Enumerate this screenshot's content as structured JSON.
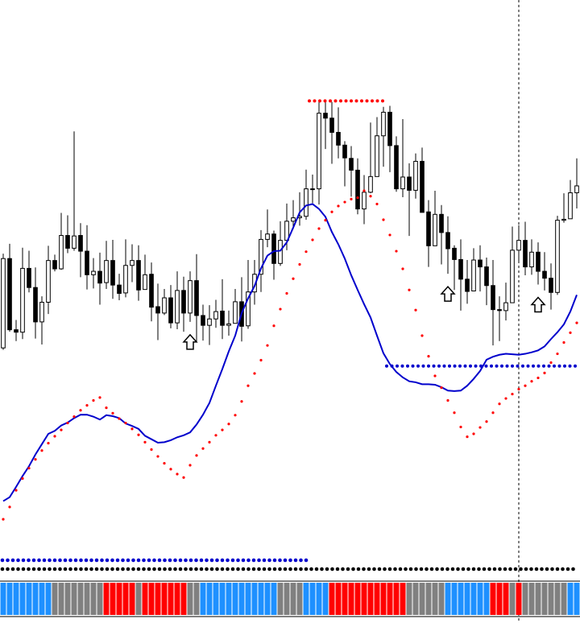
{
  "colors": {
    "background": "#ffffff",
    "bull_body": "#ffffff",
    "bear_body": "#000000",
    "wick": "#000000",
    "moving_average": "#0000cc",
    "sar_dots": "#ff0000",
    "resistance_dots": "#ff0000",
    "support_dots": "#0000cc",
    "strength_up": "#1e90ff",
    "strength_neutral": "#808080",
    "strength_down": "#ff0000",
    "crosshair": "#000000"
  },
  "chart_data": {
    "type": "candlestick",
    "title": "",
    "xlabel": "",
    "ylabel": "",
    "grid": false,
    "ylim": [
      0,
      100
    ],
    "n_bars": 90,
    "candles": [
      [
        35.7,
        53.9,
        54.9,
        35.3
      ],
      [
        53.9,
        39.4,
        56.9,
        39.0
      ],
      [
        39.4,
        38.9,
        41.4,
        37.1
      ],
      [
        38.9,
        51.9,
        56.1,
        37.5
      ],
      [
        51.9,
        48.0,
        55.5,
        47.0
      ],
      [
        48.0,
        41.0,
        52.1,
        37.6
      ],
      [
        41.0,
        45.0,
        46.2,
        36.4
      ],
      [
        45.0,
        53.5,
        56.5,
        42.6
      ],
      [
        53.5,
        51.8,
        54.7,
        51.3
      ],
      [
        51.8,
        58.6,
        63.2,
        51.6
      ],
      [
        58.6,
        56.0,
        62.7,
        55.0
      ],
      [
        56.0,
        58.5,
        79.8,
        55.5
      ],
      [
        58.6,
        55.4,
        61.1,
        50.1
      ],
      [
        55.4,
        50.6,
        60.7,
        47.6
      ],
      [
        50.6,
        51.3,
        54.0,
        47.8
      ],
      [
        51.3,
        48.9,
        55.1,
        44.5
      ],
      [
        49.0,
        53.5,
        57.5,
        47.7
      ],
      [
        53.5,
        48.5,
        57.7,
        45.7
      ],
      [
        48.5,
        46.8,
        50.8,
        45.4
      ],
      [
        46.9,
        52.5,
        57.8,
        46.0
      ],
      [
        52.5,
        53.5,
        56.8,
        49.1
      ],
      [
        53.5,
        47.5,
        56.6,
        45.3
      ],
      [
        47.6,
        50.6,
        54.7,
        48.8
      ],
      [
        50.7,
        44.0,
        53.1,
        41.1
      ],
      [
        44.1,
        42.8,
        48.8,
        37.3
      ],
      [
        42.8,
        45.9,
        47.7,
        42.4
      ],
      [
        45.9,
        40.8,
        48.5,
        39.7
      ],
      [
        40.8,
        47.4,
        51.3,
        39.5
      ],
      [
        47.4,
        42.8,
        50.2,
        39.0
      ],
      [
        42.8,
        49.4,
        51.3,
        41.0
      ],
      [
        49.4,
        42.3,
        54.8,
        36.8
      ],
      [
        42.3,
        40.3,
        44.5,
        37.2
      ],
      [
        40.3,
        41.6,
        44.4,
        36.3
      ],
      [
        41.6,
        43.1,
        45.5,
        39.8
      ],
      [
        43.2,
        40.3,
        49.7,
        37.5
      ],
      [
        40.3,
        40.6,
        43.3,
        38.2
      ],
      [
        40.7,
        45.1,
        47.7,
        41.2
      ],
      [
        45.1,
        40.1,
        50.1,
        37.0
      ],
      [
        40.2,
        47.1,
        53.6,
        39.6
      ],
      [
        47.1,
        50.7,
        53.6,
        44.5
      ],
      [
        50.7,
        57.8,
        59.7,
        47.1
      ],
      [
        57.8,
        58.9,
        63.9,
        56.2
      ],
      [
        58.9,
        52.9,
        59.6,
        49.6
      ],
      [
        52.9,
        57.6,
        61.5,
        52.4
      ],
      [
        57.6,
        61.5,
        65.1,
        55.6
      ],
      [
        61.5,
        62.2,
        65.8,
        59.9
      ],
      [
        62.2,
        62.5,
        67.4,
        60.6
      ],
      [
        62.5,
        68.1,
        72.0,
        61.8
      ],
      [
        68.1,
        68.1,
        71.0,
        65.2
      ],
      [
        68.1,
        83.5,
        85.8,
        64.9
      ],
      [
        83.5,
        82.5,
        85.9,
        76.2
      ],
      [
        82.5,
        79.6,
        85.8,
        73.2
      ],
      [
        79.6,
        77.0,
        84.7,
        74.3
      ],
      [
        77.0,
        74.4,
        77.8,
        68.6
      ],
      [
        74.3,
        71.9,
        76.8,
        66.5
      ],
      [
        71.9,
        64.0,
        74.3,
        62.9
      ],
      [
        64.0,
        67.4,
        70.9,
        60.9
      ],
      [
        67.4,
        70.6,
        81.6,
        67.2
      ],
      [
        70.6,
        78.9,
        82.7,
        74.8
      ],
      [
        78.9,
        83.7,
        84.8,
        72.6
      ],
      [
        83.7,
        76.9,
        85.0,
        71.5
      ],
      [
        76.9,
        68.1,
        78.8,
        67.5
      ],
      [
        68.1,
        70.5,
        82.3,
        66.4
      ],
      [
        70.5,
        67.8,
        73.3,
        58.5
      ],
      [
        67.8,
        73.7,
        75.3,
        66.1
      ],
      [
        73.7,
        63.3,
        76.5,
        63.3
      ],
      [
        63.4,
        56.5,
        65.8,
        52.2
      ],
      [
        56.5,
        62.9,
        67.7,
        58.0
      ],
      [
        62.9,
        59.2,
        64.8,
        52.7
      ],
      [
        59.2,
        55.9,
        62.5,
        50.8
      ],
      [
        56.0,
        53.7,
        56.6,
        47.5
      ],
      [
        53.7,
        49.7,
        57.8,
        43.3
      ],
      [
        49.7,
        47.2,
        53.6,
        44.7
      ],
      [
        47.3,
        53.6,
        56.0,
        47.8
      ],
      [
        53.6,
        52.2,
        56.6,
        47.2
      ],
      [
        52.2,
        48.4,
        54.1,
        44.4
      ],
      [
        48.4,
        43.5,
        53.6,
        36.2
      ],
      [
        43.5,
        43.3,
        46.2,
        37.1
      ],
      [
        43.3,
        44.9,
        49.0,
        41.3
      ],
      [
        44.9,
        55.6,
        60.4,
        49.0
      ],
      [
        55.6,
        57.6,
        60.7,
        53.4
      ],
      [
        57.6,
        52.2,
        61.4,
        50.5
      ],
      [
        52.2,
        55.2,
        57.8,
        50.6
      ],
      [
        55.2,
        51.3,
        57.2,
        48.6
      ],
      [
        51.3,
        49.9,
        55.2,
        47.4
      ],
      [
        49.9,
        47.0,
        52.9,
        43.5
      ],
      [
        47.0,
        61.7,
        62.6,
        46.5
      ],
      [
        61.7,
        61.9,
        67.2,
        61.2
      ],
      [
        62.0,
        67.3,
        69.9,
        62.9
      ],
      [
        67.3,
        68.7,
        74.3,
        64.1
      ]
    ],
    "moving_average": [
      4.5,
      5.3,
      7.4,
      9.6,
      11.6,
      14.0,
      16.1,
      18.2,
      18.8,
      19.9,
      20.5,
      21.4,
      22.1,
      22.1,
      21.7,
      21.1,
      22.0,
      21.8,
      21.4,
      20.3,
      19.8,
      19.2,
      17.8,
      17.1,
      16.4,
      16.5,
      16.9,
      17.5,
      17.9,
      18.5,
      20.1,
      22.1,
      24.5,
      28.0,
      31.4,
      35.0,
      38.2,
      42.8,
      45.8,
      48.3,
      51.9,
      54.5,
      55.4,
      55.5,
      57.2,
      60.2,
      63.3,
      64.7,
      65.0,
      64.0,
      62.4,
      59.3,
      56.8,
      53.9,
      50.5,
      47.5,
      44.6,
      41.9,
      38.2,
      34.6,
      32.4,
      30.8,
      29.7,
      28.9,
      28.7,
      28.3,
      28.3,
      28.2,
      27.7,
      27.0,
      26.9,
      27.0,
      28.0,
      29.4,
      31.0,
      33.3,
      33.9,
      34.3,
      34.5,
      34.4,
      34.3,
      34.5,
      34.8,
      35.2,
      36.0,
      37.5,
      38.9,
      40.5,
      43.1,
      46.5
    ],
    "sar_dots": [
      0.8,
      3.3,
      6.7,
      9.1,
      11.2,
      13.0,
      14.8,
      16.3,
      17.7,
      19.0,
      20.4,
      21.7,
      23.0,
      24.0,
      25.0,
      25.6,
      23.5,
      22.4,
      21.3,
      20.4,
      19.2,
      18.0,
      16.5,
      15.0,
      13.6,
      12.2,
      11.0,
      10.0,
      9.3,
      11.8,
      13.8,
      15.2,
      16.5,
      17.9,
      19.0,
      20.2,
      22.0,
      24.8,
      28.0,
      30.5,
      33.2,
      36.2,
      40.2,
      43.6,
      46.8,
      49.8,
      52.7,
      55.3,
      57.7,
      60.0,
      61.7,
      63.4,
      64.6,
      65.4,
      66.0,
      66.3,
      67.7,
      66.6,
      65.0,
      61.8,
      58.7,
      55.4,
      51.8,
      47.5,
      43.4,
      38.2,
      34.0,
      30.0,
      27.6,
      25.0,
      22.5,
      19.6,
      17.6,
      18.2,
      19.5,
      20.7,
      22.5,
      24.3,
      25.4,
      26.3,
      27.3,
      28.0,
      28.9,
      29.6,
      30.6,
      32.7,
      34.5,
      36.8,
      38.8,
      40.8
    ],
    "resistance": {
      "value": 86.0,
      "from_bar": 48,
      "to_bar": 59
    },
    "support": {
      "value": 32.0,
      "from_bar": 60,
      "to_bar": 89
    },
    "buy_arrows": [
      29,
      69,
      83
    ],
    "crosshair_bar": 80,
    "strength_histogram": [
      "up",
      "up",
      "up",
      "up",
      "up",
      "up",
      "up",
      "up",
      "neutral",
      "neutral",
      "neutral",
      "neutral",
      "neutral",
      "neutral",
      "neutral",
      "neutral",
      "down",
      "down",
      "down",
      "down",
      "down",
      "neutral",
      "down",
      "down",
      "down",
      "down",
      "down",
      "down",
      "down",
      "neutral",
      "neutral",
      "up",
      "up",
      "up",
      "up",
      "up",
      "up",
      "up",
      "up",
      "up",
      "up",
      "up",
      "up",
      "neutral",
      "neutral",
      "neutral",
      "neutral",
      "up",
      "up",
      "up",
      "up",
      "down",
      "down",
      "down",
      "down",
      "down",
      "down",
      "down",
      "down",
      "down",
      "down",
      "down",
      "down",
      "neutral",
      "neutral",
      "neutral",
      "neutral",
      "neutral",
      "neutral",
      "up",
      "up",
      "up",
      "up",
      "up",
      "up",
      "up",
      "down",
      "down",
      "down",
      "neutral",
      "down",
      "neutral",
      "neutral",
      "neutral",
      "neutral",
      "neutral",
      "neutral",
      "neutral",
      "up",
      "up"
    ],
    "upper_dot_row": {
      "color": "#0000cc",
      "to_bar": 47
    },
    "lower_dot_row": {
      "color": "#000000",
      "to_bar": 89
    }
  }
}
